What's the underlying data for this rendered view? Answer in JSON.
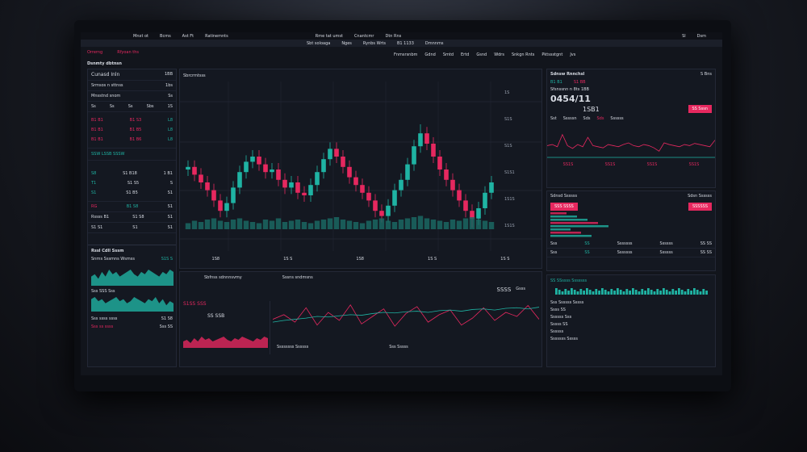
{
  "topbar": {
    "items": [
      "Mnxt ot",
      "Bcms",
      "Ast Ft",
      "Ratinemnts",
      "Rme tat umst",
      "Cnantcmr",
      "Dtn Rns"
    ],
    "right": [
      "Sl",
      "Dsm"
    ]
  },
  "subbar": {
    "items": [
      "Sbt soloaga",
      "Nges",
      "Rynbs Wrts",
      "B1 1133",
      "Dmnnms"
    ]
  },
  "header": {
    "tabs": [
      "Orrerng",
      "Rfyoan ths"
    ],
    "title": "Dsnmty dbtnsn",
    "tools": [
      "Fnmsrsnbm",
      "Gdnd",
      "Smtd",
      "Ertd",
      "Gsnd",
      "Wdrs",
      "Snkgn Rnts",
      "Pktssstgnt",
      "Jvs"
    ]
  },
  "left": {
    "title": "Cunasd Inln",
    "value": "1BB",
    "rows": [
      {
        "label": "Srmsos n sttnss",
        "v": "1bs"
      },
      {
        "label": "Mnsstnd snom",
        "v": "Ss"
      }
    ],
    "cols": [
      "Ss",
      "Ss",
      "Ss",
      "Sbs",
      "1S"
    ],
    "orders": [
      {
        "a": "B1 B1",
        "b": "B1 S3",
        "c": "L8"
      },
      {
        "a": "B1 B1",
        "b": "B1 B5",
        "c": "L8"
      },
      {
        "a": "B1 B1",
        "b": "B1 B6",
        "c": "L8"
      }
    ],
    "banner": "SSW LSSB SSSW",
    "book": [
      {
        "a": "S8",
        "b": "S1 B18",
        "c": "1 B1"
      },
      {
        "a": "T1",
        "b": "S1 S5",
        "c": "S"
      },
      {
        "a": "S1",
        "b": "S1 B5",
        "c": "S1"
      }
    ],
    "stat": {
      "a": "RG",
      "b": "B1 S8",
      "c": "S1"
    },
    "foot": [
      {
        "a": "Rssss B1",
        "b": "S1 S8",
        "c": "S1"
      },
      {
        "a": "S1 S1",
        "b": "S1",
        "c": "S1"
      }
    ],
    "mini_title": "Rssl Cdll Sssm",
    "mini_sub": "Snrns Sssmns Wsmss",
    "mini_val": "S1S S",
    "mini2": "Sss SSS Sss",
    "bottom": [
      "Sss ssss ssss",
      "Sss ss ssss"
    ],
    "bottom_vals": [
      "S1 S8",
      "Sss SS"
    ]
  },
  "chart": {
    "label": "Sbrcrmtsss",
    "axis": [
      "1S",
      "S1S",
      "S1S",
      "S1S1",
      "1S1S",
      "1S1S"
    ],
    "footer": [
      "1S8",
      "1S S",
      "1S8",
      "1S S",
      "1S S"
    ],
    "legend": [
      "Sbfnss sdnnnsvmy",
      "Sssns sndmsns"
    ],
    "candles": [
      [
        60,
        67,
        55,
        62
      ],
      [
        62,
        67,
        51,
        56
      ],
      [
        56,
        61,
        45,
        50
      ],
      [
        50,
        55,
        39,
        44
      ],
      [
        44,
        49,
        31,
        36
      ],
      [
        36,
        41,
        23,
        28
      ],
      [
        28,
        39,
        23,
        34
      ],
      [
        34,
        51,
        29,
        46
      ],
      [
        46,
        63,
        41,
        58
      ],
      [
        58,
        71,
        53,
        66
      ],
      [
        66,
        75,
        61,
        70
      ],
      [
        70,
        75,
        59,
        64
      ],
      [
        64,
        69,
        53,
        58
      ],
      [
        58,
        65,
        53,
        60
      ],
      [
        60,
        65,
        47,
        52
      ],
      [
        52,
        57,
        41,
        46
      ],
      [
        46,
        55,
        41,
        50
      ],
      [
        50,
        55,
        37,
        42
      ],
      [
        42,
        47,
        35,
        40
      ],
      [
        40,
        53,
        35,
        48
      ],
      [
        48,
        63,
        43,
        58
      ],
      [
        58,
        73,
        53,
        68
      ],
      [
        68,
        81,
        63,
        76
      ],
      [
        76,
        81,
        65,
        70
      ],
      [
        70,
        75,
        57,
        62
      ],
      [
        62,
        67,
        49,
        54
      ],
      [
        54,
        59,
        43,
        48
      ],
      [
        48,
        53,
        37,
        42
      ],
      [
        42,
        47,
        31,
        36
      ],
      [
        36,
        41,
        23,
        28
      ],
      [
        28,
        33,
        19,
        24
      ],
      [
        24,
        37,
        19,
        32
      ],
      [
        32,
        49,
        27,
        44
      ],
      [
        44,
        57,
        39,
        52
      ],
      [
        52,
        69,
        47,
        64
      ],
      [
        64,
        83,
        59,
        78
      ],
      [
        78,
        95,
        73,
        88
      ],
      [
        88,
        93,
        75,
        80
      ],
      [
        80,
        85,
        65,
        70
      ],
      [
        70,
        75,
        55,
        60
      ],
      [
        60,
        65,
        47,
        52
      ],
      [
        52,
        57,
        39,
        44
      ],
      [
        44,
        49,
        31,
        36
      ],
      [
        36,
        41,
        23,
        28
      ],
      [
        28,
        33,
        15,
        22
      ],
      [
        22,
        35,
        17,
        30
      ],
      [
        30,
        47,
        25,
        42
      ],
      [
        42,
        55,
        37,
        50
      ]
    ],
    "volume": [
      5,
      7,
      6,
      8,
      9,
      7,
      6,
      8,
      9,
      7,
      6,
      5,
      8,
      7,
      9,
      6,
      7,
      8,
      6,
      5,
      7,
      8,
      9,
      10,
      8,
      7,
      6,
      5,
      7,
      8,
      9,
      7,
      6,
      8,
      9,
      10,
      11,
      9,
      8,
      7,
      6,
      8,
      7,
      9,
      10,
      8,
      7,
      6
    ]
  },
  "bottom": {
    "left_label": "S1SS SSS",
    "left_val": "SS SSB",
    "right_label": "SSSS",
    "right_tag": "Gsss",
    "foot": [
      "Ssssssss Ssssss",
      "Sss Sssss"
    ],
    "area": [
      4,
      5,
      3,
      6,
      4,
      7,
      5,
      6,
      4,
      5,
      6,
      7,
      5,
      4,
      6,
      5,
      7,
      6,
      5,
      4,
      6,
      5,
      7,
      6
    ],
    "line_pink": [
      50,
      58,
      45,
      70,
      40,
      62,
      48,
      75,
      42,
      55,
      68,
      38,
      60,
      72,
      45,
      58,
      66,
      40,
      52,
      70,
      48,
      62,
      55,
      74,
      50
    ],
    "line_teal": [
      45,
      48,
      50,
      52,
      55,
      54,
      56,
      58,
      57,
      60,
      62,
      61,
      63,
      64,
      62,
      65,
      66,
      64,
      67,
      68,
      66,
      69,
      70,
      68,
      71
    ]
  },
  "right": {
    "title": "Sdnsw Rnnchsl",
    "pct": "S Bns",
    "rows": [
      "B1 B1",
      "S1 BB"
    ],
    "big_label": "Sfsnssnn n 8ts 1BB",
    "big": "0454/11",
    "sub": "1SB1",
    "badge": "SS Sssn",
    "tabs": [
      "Sst",
      "Sssssn",
      "Sds",
      "Sds",
      "Ssssss"
    ],
    "x": [
      "SS1S",
      "SS1S",
      "SS1S",
      "SS1S"
    ],
    "series": [
      50,
      52,
      48,
      70,
      50,
      45,
      52,
      48,
      65,
      50,
      48,
      46,
      52,
      50,
      48,
      52,
      55,
      50,
      48,
      52,
      50,
      46,
      40,
      55,
      52,
      50,
      48,
      52,
      50,
      54,
      52,
      50,
      48,
      60
    ],
    "order_title": "Sdnsd Ssssss",
    "order_title2": "Sdsn Ssssss",
    "sell": "SSS SSSS",
    "buy": "SSSSSS",
    "bars_label": "SS SSssss Sssssss",
    "table": [
      [
        "Sss",
        "SS",
        "Sssssss",
        "Ssssss",
        "SS SS"
      ],
      [
        "Sss",
        "SS",
        "Sssssss",
        "Ssssss",
        "SS SS"
      ]
    ],
    "list": [
      "Sss Ssssss Sssss",
      "Ssss SS",
      "Ssssss Sss",
      "Sssss SS",
      "Ssssss",
      "Sssssss Sssss"
    ]
  },
  "colors": {
    "up": "#1fb3a3",
    "down": "#e6285f",
    "bg": "#12151c"
  }
}
